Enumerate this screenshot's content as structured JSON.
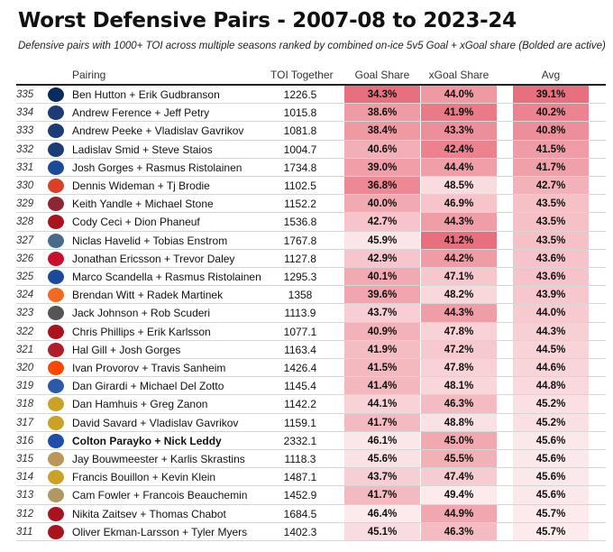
{
  "title": "Worst Defensive Pairs - 2007-08 to 2023-24",
  "subtitle": "Defensive pairs with 1000+ TOI across multiple seasons ranked by combined on-ice 5v5 Goal + xGoal share (Bolded are active)",
  "colors": {
    "high": "#e8707e",
    "low": "#ffffff",
    "line": "#222222"
  },
  "chart_data": {
    "type": "table",
    "columns": [
      "Pairing",
      "TOI Together",
      "Goal Share",
      "xGoal Share",
      "Avg"
    ],
    "rows": [
      {
        "rank": "335",
        "team": "Vancouver Canucks",
        "logo_color": "#0a2c5a",
        "pairing": "Ben Hutton + Erik Gudbranson",
        "toi": "1226.5",
        "goal_share": "34.3%",
        "xgoal_share": "44.0%",
        "avg": "39.1%",
        "active": false
      },
      {
        "rank": "334",
        "team": "Edmonton Oilers",
        "logo_color": "#1d3b75",
        "pairing": "Andrew Ference + Jeff Petry",
        "toi": "1015.8",
        "goal_share": "38.6%",
        "xgoal_share": "41.9%",
        "avg": "40.2%",
        "active": false
      },
      {
        "rank": "333",
        "team": "Columbus Blue Jackets",
        "logo_color": "#1c3c76",
        "pairing": "Andrew Peeke + Vladislav Gavrikov",
        "toi": "1081.8",
        "goal_share": "38.4%",
        "xgoal_share": "43.3%",
        "avg": "40.8%",
        "active": false
      },
      {
        "rank": "332",
        "team": "Edmonton Oilers",
        "logo_color": "#1d3b75",
        "pairing": "Ladislav Smid + Steve Staios",
        "toi": "1004.7",
        "goal_share": "40.6%",
        "xgoal_share": "42.4%",
        "avg": "41.5%",
        "active": false
      },
      {
        "rank": "331",
        "team": "Buffalo Sabres",
        "logo_color": "#1b4a9a",
        "pairing": "Josh Gorges + Rasmus Ristolainen",
        "toi": "1734.8",
        "goal_share": "39.0%",
        "xgoal_share": "44.4%",
        "avg": "41.7%",
        "active": false
      },
      {
        "rank": "330",
        "team": "Calgary Flames",
        "logo_color": "#d8402a",
        "pairing": "Dennis Wideman + Tj Brodie",
        "toi": "1102.5",
        "goal_share": "36.8%",
        "xgoal_share": "48.5%",
        "avg": "42.7%",
        "active": false
      },
      {
        "rank": "329",
        "team": "Arizona Coyotes",
        "logo_color": "#8c2633",
        "pairing": "Keith Yandle + Michael Stone",
        "toi": "1152.2",
        "goal_share": "40.0%",
        "xgoal_share": "46.9%",
        "avg": "43.5%",
        "active": false
      },
      {
        "rank": "328",
        "team": "Ottawa Senators",
        "logo_color": "#a8131e",
        "pairing": "Cody Ceci + Dion Phaneuf",
        "toi": "1536.8",
        "goal_share": "42.7%",
        "xgoal_share": "44.3%",
        "avg": "43.5%",
        "active": false
      },
      {
        "rank": "327",
        "team": "Atlanta Thrashers",
        "logo_color": "#4a6a8c",
        "pairing": "Niclas Havelid + Tobias Enstrom",
        "toi": "1767.8",
        "goal_share": "45.9%",
        "xgoal_share": "41.2%",
        "avg": "43.5%",
        "active": false
      },
      {
        "rank": "326",
        "team": "Detroit Red Wings",
        "logo_color": "#c8102e",
        "pairing": "Jonathan Ericsson + Trevor Daley",
        "toi": "1127.8",
        "goal_share": "42.9%",
        "xgoal_share": "44.2%",
        "avg": "43.6%",
        "active": false
      },
      {
        "rank": "325",
        "team": "Buffalo Sabres",
        "logo_color": "#1b4a9a",
        "pairing": "Marco Scandella + Rasmus Ristolainen",
        "toi": "1295.3",
        "goal_share": "40.1%",
        "xgoal_share": "47.1%",
        "avg": "43.6%",
        "active": false
      },
      {
        "rank": "324",
        "team": "New York Islanders",
        "logo_color": "#f26924",
        "pairing": "Brendan Witt + Radek Martinek",
        "toi": "1358",
        "goal_share": "39.6%",
        "xgoal_share": "48.2%",
        "avg": "43.9%",
        "active": false
      },
      {
        "rank": "323",
        "team": "Los Angeles Kings",
        "logo_color": "#555555",
        "pairing": "Jack Johnson + Rob Scuderi",
        "toi": "1113.9",
        "goal_share": "43.7%",
        "xgoal_share": "44.3%",
        "avg": "44.0%",
        "active": false
      },
      {
        "rank": "322",
        "team": "Ottawa Senators",
        "logo_color": "#a8131e",
        "pairing": "Chris Phillips + Erik Karlsson",
        "toi": "1077.1",
        "goal_share": "40.9%",
        "xgoal_share": "47.8%",
        "avg": "44.3%",
        "active": false
      },
      {
        "rank": "321",
        "team": "Montreal Canadiens",
        "logo_color": "#af1e2d",
        "pairing": "Hal Gill + Josh Gorges",
        "toi": "1163.4",
        "goal_share": "41.9%",
        "xgoal_share": "47.2%",
        "avg": "44.5%",
        "active": false
      },
      {
        "rank": "320",
        "team": "Philadelphia Flyers",
        "logo_color": "#f74902",
        "pairing": "Ivan Provorov + Travis Sanheim",
        "toi": "1426.4",
        "goal_share": "41.5%",
        "xgoal_share": "47.8%",
        "avg": "44.6%",
        "active": false
      },
      {
        "rank": "319",
        "team": "New York Rangers",
        "logo_color": "#2a5aa8",
        "pairing": "Dan Girardi + Michael Del Zotto",
        "toi": "1145.4",
        "goal_share": "41.4%",
        "xgoal_share": "48.1%",
        "avg": "44.8%",
        "active": false
      },
      {
        "rank": "318",
        "team": "Nashville Predators",
        "logo_color": "#c9a227",
        "pairing": "Dan Hamhuis + Greg Zanon",
        "toi": "1142.2",
        "goal_share": "44.1%",
        "xgoal_share": "46.3%",
        "avg": "45.2%",
        "active": false
      },
      {
        "rank": "317",
        "team": "Nashville Predators",
        "logo_color": "#c9a227",
        "pairing": "David Savard + Vladislav Gavrikov",
        "toi": "1159.1",
        "goal_share": "41.7%",
        "xgoal_share": "48.8%",
        "avg": "45.2%",
        "active": false
      },
      {
        "rank": "316",
        "team": "St. Louis Blues",
        "logo_color": "#1e4ea8",
        "pairing": "Colton Parayko + Nick Leddy",
        "toi": "2332.1",
        "goal_share": "46.1%",
        "xgoal_share": "45.0%",
        "avg": "45.6%",
        "active": true
      },
      {
        "rank": "315",
        "team": "Florida Panthers",
        "logo_color": "#b9975b",
        "pairing": "Jay Bouwmeester + Karlis Skrastins",
        "toi": "1118.3",
        "goal_share": "45.6%",
        "xgoal_share": "45.5%",
        "avg": "45.6%",
        "active": false
      },
      {
        "rank": "314",
        "team": "Nashville Predators",
        "logo_color": "#c9a227",
        "pairing": "Francis Bouillon + Kevin Klein",
        "toi": "1487.1",
        "goal_share": "43.7%",
        "xgoal_share": "47.4%",
        "avg": "45.6%",
        "active": false
      },
      {
        "rank": "313",
        "team": "Anaheim Ducks",
        "logo_color": "#b09862",
        "pairing": "Cam Fowler + Francois Beauchemin",
        "toi": "1452.9",
        "goal_share": "41.7%",
        "xgoal_share": "49.4%",
        "avg": "45.6%",
        "active": false
      },
      {
        "rank": "312",
        "team": "Ottawa Senators",
        "logo_color": "#a8131e",
        "pairing": "Nikita Zaitsev + Thomas Chabot",
        "toi": "1684.5",
        "goal_share": "46.4%",
        "xgoal_share": "44.9%",
        "avg": "45.7%",
        "active": false
      },
      {
        "rank": "311",
        "team": "Ottawa Senators",
        "logo_color": "#a8131e",
        "pairing": "Oliver Ekman-Larsson + Tyler Myers",
        "toi": "1402.3",
        "goal_share": "45.1%",
        "xgoal_share": "46.3%",
        "avg": "45.7%",
        "active": false
      }
    ]
  }
}
